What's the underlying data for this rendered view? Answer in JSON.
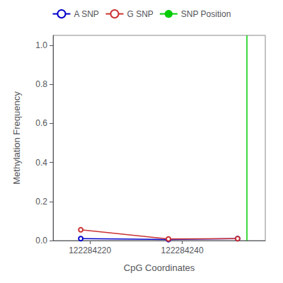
{
  "chart_data": {
    "type": "line",
    "xlabel": "CpG Coordinates",
    "ylabel": "Methylation Frequency",
    "xlim": [
      122284212,
      122284258
    ],
    "xticks": [
      122284220,
      122284240
    ],
    "ylim": [
      0.0,
      1.05
    ],
    "yticks": [
      {
        "value": 0.0,
        "label": "0.0"
      },
      0.2,
      0.4,
      0.6,
      0.8,
      {
        "value": 1.0,
        "label": "1.0"
      }
    ],
    "grid": false,
    "legend": "top",
    "series": [
      {
        "name": "A SNP",
        "type": "line",
        "color": "#0000cc",
        "marker": "circle",
        "x": [
          122284218,
          122284237,
          122284252
        ],
        "values": [
          0.01,
          0.005,
          0.01
        ]
      },
      {
        "name": "G SNP",
        "type": "line",
        "color": "#cc3333",
        "marker": "circle",
        "x": [
          122284218,
          122284237,
          122284252
        ],
        "values": [
          0.055,
          0.008,
          0.01
        ]
      },
      {
        "name": "SNP Position",
        "type": "vline",
        "color": "#00cc00",
        "x": [
          122284254
        ]
      }
    ]
  }
}
